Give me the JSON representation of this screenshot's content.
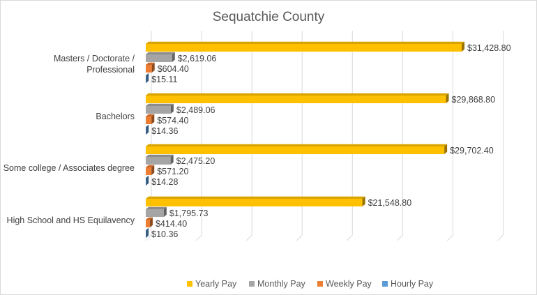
{
  "chart_data": {
    "type": "bar",
    "orientation": "horizontal",
    "title": "Sequatchie County",
    "categories": [
      "Masters / Doctorate / Professional",
      "Bachelors",
      "Some college / Associates degree",
      "High School and HS Equilavency"
    ],
    "category_lines": [
      [
        "Masters / Doctorate /",
        "Professional"
      ],
      [
        "Bachelors"
      ],
      [
        "Some college / Associates degree"
      ],
      [
        "High School and HS Equilavency"
      ]
    ],
    "series": [
      {
        "name": "Yearly Pay",
        "color": "#FFC000",
        "values": [
          31428.8,
          29868.8,
          29702.4,
          21548.8
        ],
        "labels": [
          "$31,428.80",
          "$29,868.80",
          "$29,702.40",
          "$21,548.80"
        ]
      },
      {
        "name": "Monthly Pay",
        "color": "#A5A5A5",
        "values": [
          2619.06,
          2489.06,
          2475.2,
          1795.73
        ],
        "labels": [
          "$2,619.06",
          "$2,489.06",
          "$2,475.20",
          "$1,795.73"
        ]
      },
      {
        "name": "Weekly Pay",
        "color": "#ED7D31",
        "values": [
          604.4,
          574.4,
          571.2,
          414.4
        ],
        "labels": [
          "$604.40",
          "$574.40",
          "$571.20",
          "$414.40"
        ]
      },
      {
        "name": "Hourly Pay",
        "color": "#5B9BD5",
        "values": [
          15.11,
          14.36,
          14.28,
          10.36
        ],
        "labels": [
          "$15.11",
          "$14.36",
          "$14.28",
          "$10.36"
        ]
      }
    ],
    "xlim": [
      0,
      35000
    ],
    "grid": true,
    "legend": "bottom",
    "style": "3d-clustered-bar"
  }
}
